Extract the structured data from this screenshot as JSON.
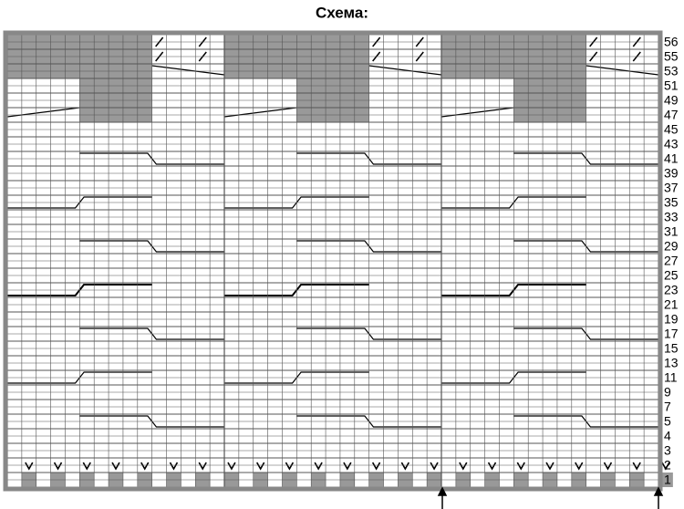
{
  "title": "Схема:",
  "row_numbers": [
    "56",
    "55",
    "53",
    "51",
    "49",
    "47",
    "45",
    "43",
    "41",
    "39",
    "37",
    "35",
    "33",
    "31",
    "29",
    "27",
    "25",
    "23",
    "21",
    "19",
    "17",
    "15",
    "13",
    "11",
    "9",
    "7",
    "5",
    "4",
    "3",
    "2",
    "1"
  ]
}
